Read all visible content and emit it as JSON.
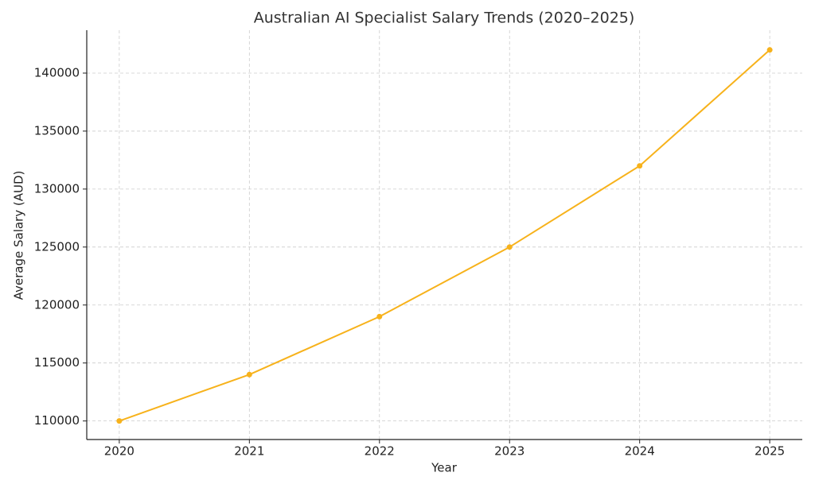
{
  "chart_data": {
    "type": "line",
    "title": "Australian AI Specialist Salary Trends (2020–2025)",
    "x_label": "Year",
    "y_label": "Average Salary (AUD)",
    "x": [
      2020,
      2021,
      2022,
      2023,
      2024,
      2025
    ],
    "series": [
      {
        "name": "Average Salary",
        "color": "#f7b21b",
        "values": [
          110000,
          114000,
          119000,
          125000,
          132000,
          142000
        ]
      }
    ],
    "xlim": [
      2019.75,
      2025.25
    ],
    "xticks": [
      2020,
      2021,
      2022,
      2023,
      2024,
      2025
    ],
    "ylim": [
      108400,
      143700
    ],
    "yticks": [
      110000,
      115000,
      120000,
      125000,
      130000,
      135000,
      140000
    ],
    "grid": true,
    "legend": false
  }
}
